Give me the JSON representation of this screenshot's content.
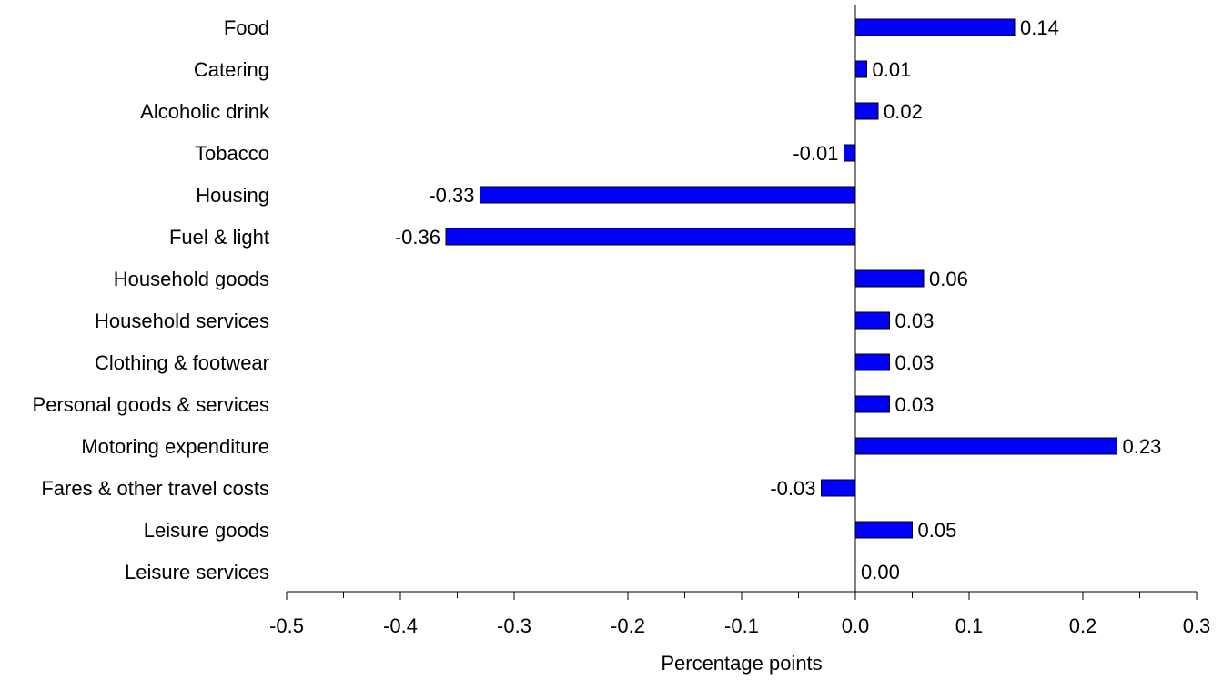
{
  "chart_data": {
    "type": "bar",
    "orientation": "horizontal",
    "categories": [
      "Food",
      "Catering",
      "Alcoholic drink",
      "Tobacco",
      "Housing",
      "Fuel & light",
      "Household goods",
      "Household services",
      "Clothing & footwear",
      "Personal goods & services",
      "Motoring expenditure",
      "Fares & other travel costs",
      "Leisure goods",
      "Leisure services"
    ],
    "values": [
      0.14,
      0.01,
      0.02,
      -0.01,
      -0.33,
      -0.36,
      0.06,
      0.03,
      0.03,
      0.03,
      0.23,
      -0.03,
      0.05,
      0.0
    ],
    "data_labels": [
      "0.14",
      "0.01",
      "0.02",
      "-0.01",
      "-0.33",
      "-0.36",
      "0.06",
      "0.03",
      "0.03",
      "0.03",
      "0.23",
      "-0.03",
      "0.05",
      "0.00"
    ],
    "xlabel": "Percentage points",
    "ylabel": "",
    "xlim": [
      -0.5,
      0.3
    ],
    "x_ticks": [
      -0.5,
      -0.4,
      -0.3,
      -0.2,
      -0.1,
      0.0,
      0.1,
      0.2,
      0.3
    ],
    "x_tick_labels": [
      "-0.5",
      "-0.4",
      "-0.3",
      "-0.2",
      "-0.1",
      "0.0",
      "0.1",
      "0.2",
      "0.3"
    ],
    "grid": false,
    "legend": "none",
    "bar_color": "#0000FF",
    "bar_border_color": "#000000"
  }
}
